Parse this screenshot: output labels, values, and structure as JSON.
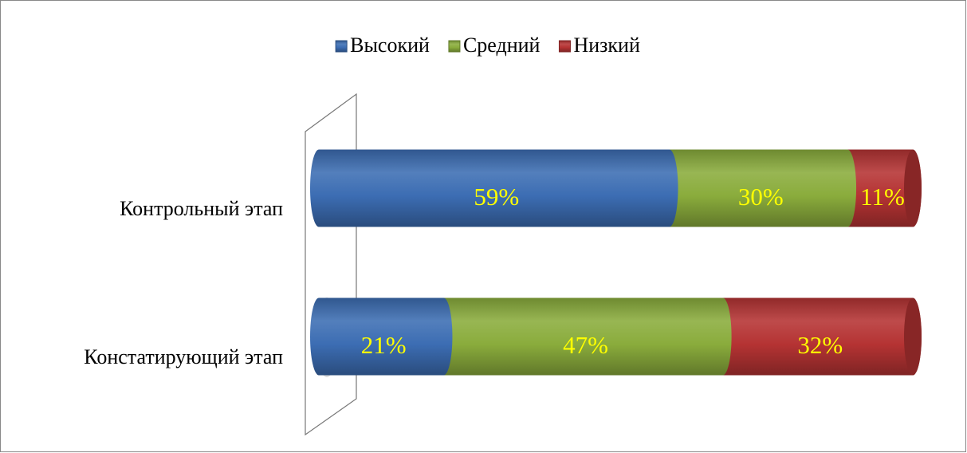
{
  "chart_data": {
    "type": "stacked_bar_horizontal",
    "categories": [
      "Контрольный этап",
      "Констатирующий этап"
    ],
    "series": [
      {
        "name": "Высокий",
        "color": "#3c6db3",
        "values": [
          59,
          21
        ],
        "value_labels": [
          "59%",
          "21%"
        ]
      },
      {
        "name": "Средний",
        "color": "#8aac3c",
        "values": [
          30,
          47
        ],
        "value_labels": [
          "30%",
          "47%"
        ]
      },
      {
        "name": "Низкий",
        "color": "#b53333",
        "values": [
          11,
          32
        ],
        "value_labels": [
          "11%",
          "32%"
        ]
      }
    ],
    "legend": "top",
    "label_color": "#ffff00"
  }
}
